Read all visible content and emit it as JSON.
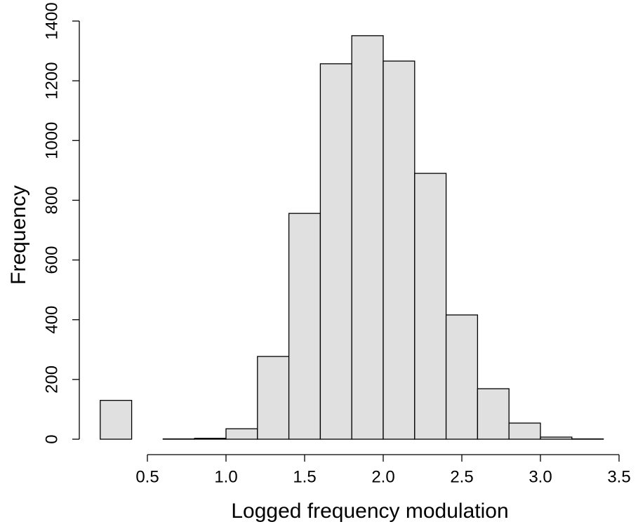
{
  "chart_data": {
    "type": "histogram",
    "x_label": "Logged frequency modulation",
    "y_label": "Frequency",
    "bins": [
      0.2,
      0.4,
      0.6,
      0.8,
      1.0,
      1.2,
      1.4,
      1.6,
      1.8,
      2.0,
      2.2,
      2.4,
      2.6,
      2.8,
      3.0,
      3.2,
      3.4
    ],
    "values": [
      130,
      0,
      1,
      3,
      35,
      277,
      756,
      1257,
      1351,
      1266,
      890,
      416,
      169,
      54,
      7,
      1
    ],
    "color": "#e0e0e0",
    "xlim": [
      0.2,
      3.5
    ],
    "xticks": [
      0.5,
      {
        "value": 1.0,
        "label": "1.0"
      },
      1.5,
      {
        "value": 2.0,
        "label": "2.0"
      },
      2.5,
      {
        "value": 3.0,
        "label": "3.0"
      },
      3.5
    ],
    "ylim": [
      0,
      1400
    ],
    "yticks": [
      0,
      200,
      400,
      600,
      800,
      1000,
      1200,
      1400
    ]
  }
}
